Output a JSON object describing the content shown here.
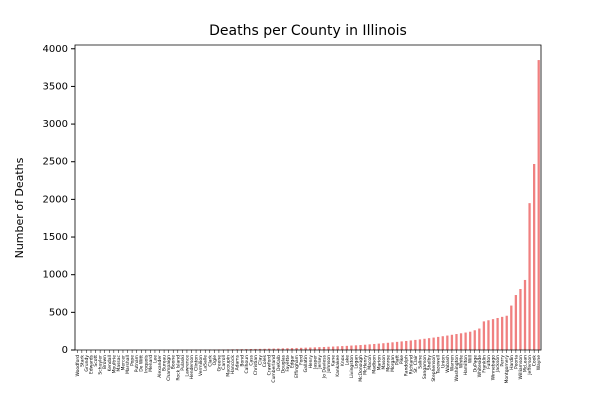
{
  "chart_data": {
    "type": "bar",
    "title": "Deaths per County in Illinois",
    "y_label": "Number of Deaths",
    "color": "#f08080",
    "categories": [
      "Woodford",
      "Stark",
      "Grundy",
      "Edwards",
      "Scott",
      "Schuyler",
      "Brown",
      "Kendall",
      "Moultrie",
      "Massac",
      "Mercer",
      "Marshall",
      "Pope",
      "Putnam",
      "De Witt",
      "Iroquois",
      "Menard",
      "Lee",
      "Alexander",
      "Bureau",
      "Champaign",
      "Boone",
      "Rock Island",
      "Pulaski",
      "Lawrence",
      "Henderson",
      "Clinton",
      "Vermilion",
      "LaSalle",
      "Clark",
      "Ogle",
      "Greene",
      "Carroll",
      "Macoupin",
      "Hancock",
      "Adams",
      "Bond",
      "Calhoun",
      "Cass",
      "Christian",
      "Clay",
      "Coles",
      "Crawford",
      "Cumberland",
      "DeKalb",
      "Douglas",
      "Fayette",
      "Edgar",
      "Effingham",
      "Ford",
      "Gallatin",
      "Henry",
      "Jasper",
      "Jersey",
      "Jo Daviess",
      "Johnson",
      "Kane",
      "Kankakee",
      "Knox",
      "Lake",
      "Livingston",
      "Logan",
      "McDonough",
      "McHenry",
      "Macon",
      "Madison",
      "Marion",
      "Mason",
      "Monroe",
      "Morgan",
      "Piatt",
      "Pike",
      "Randolph",
      "Richland",
      "St. Clair",
      "Saline",
      "Sangamon",
      "Shelby",
      "Stephenson",
      "Tazewell",
      "Union",
      "Wabash",
      "Warren",
      "Washington",
      "White",
      "Hamilton",
      "Will",
      "DuPage",
      "Whiteside",
      "Franklin",
      "Fulton",
      "Winnebago",
      "Jackson",
      "Perry",
      "Montgomery",
      "Hardin",
      "Peoria",
      "Williamson",
      "McLean",
      "Jefferson",
      "Cook",
      "Wayne"
    ],
    "values": [
      0,
      0,
      0,
      0,
      0,
      0,
      0,
      0,
      0,
      0,
      0,
      1,
      1,
      1,
      1,
      1,
      1,
      1,
      2,
      2,
      2,
      2,
      3,
      3,
      3,
      4,
      4,
      5,
      5,
      6,
      6,
      7,
      7,
      8,
      9,
      10,
      11,
      12,
      13,
      14,
      15,
      16,
      18,
      19,
      20,
      22,
      24,
      25,
      27,
      29,
      31,
      33,
      35,
      38,
      40,
      43,
      46,
      49,
      52,
      55,
      59,
      62,
      66,
      70,
      75,
      80,
      85,
      90,
      96,
      102,
      108,
      114,
      120,
      127,
      134,
      141,
      149,
      157,
      165,
      174,
      183,
      192,
      202,
      212,
      222,
      232,
      243,
      262,
      285,
      380,
      395,
      410,
      425,
      440,
      455,
      590,
      730,
      810,
      930,
      1950,
      2470,
      3850
    ],
    "ylim": [
      0,
      4050
    ],
    "yticks": [
      0,
      500,
      1000,
      1500,
      2000,
      2500,
      3000,
      3500,
      4000
    ],
    "grid": false
  }
}
